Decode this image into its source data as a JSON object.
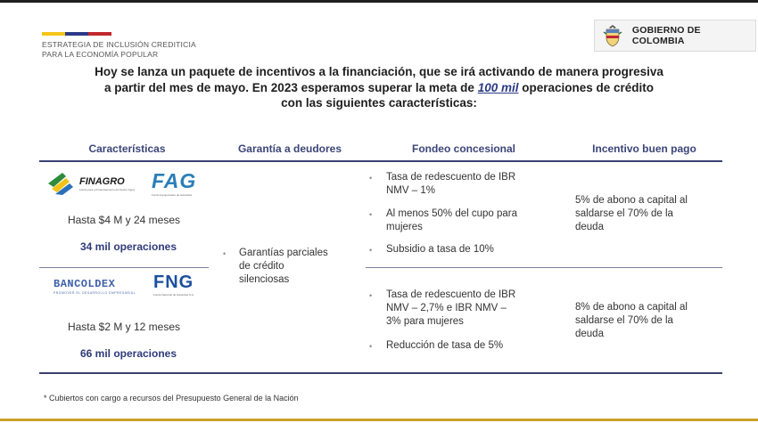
{
  "header": {
    "flag_colors": [
      "#f5c518",
      "#2b3a86",
      "#c0272d"
    ],
    "strategy_line1": "ESTRATEGIA DE INCLUSIÓN CREDITICIA",
    "strategy_line2": "PARA LA ECONOMÍA POPULAR",
    "gov_label": "GOBIERNO DE COLOMBIA"
  },
  "headline": {
    "line1": "Hoy se lanza un paquete de incentivos a la financiación, que se irá activando de manera progresiva",
    "line2_before": "a partir del mes de mayo. En 2023 esperamos superar la meta de ",
    "line2_highlight": "100 mil",
    "line2_after": " operaciones de crédito",
    "line3": "con las siguientes características:"
  },
  "table": {
    "columns": [
      "Características",
      "Garantía a deudores",
      "Fondeo concesional",
      "Incentivo buen pago"
    ],
    "row1": {
      "logo_left": "FINAGRO",
      "logo_left_tagline": "Fondo para el Financiamiento del Sector Agropecuario",
      "logo_right": "FAG",
      "logo_right_tagline": "Fondo Agropecuario de Garantías",
      "terms": "Hasta $4 M y 24 meses",
      "operations": "34 mil operaciones",
      "funding": [
        {
          "line1": "Tasa de redescuento de IBR",
          "line2": "NMV – 1%"
        },
        {
          "line1": "Al menos 50% del cupo para",
          "line2": "mujeres"
        },
        {
          "line1": "Subsidio a tasa de 10%",
          "line2": ""
        }
      ],
      "incentive": [
        "5% de abono a capital al",
        "saldarse el 70% de la",
        "deuda"
      ]
    },
    "guarantee": [
      "Garantías parciales",
      "de crédito",
      "silenciosas"
    ],
    "row2": {
      "logo_left": "BANCOLDEX",
      "logo_left_tagline": "PROMOVER EL DESARROLLO EMPRESARIAL",
      "logo_right": "FNG",
      "logo_right_tagline": "Fondo Nacional de Garantías S.A.",
      "terms": "Hasta $2 M y 12 meses",
      "operations": "66 mil operaciones",
      "funding": [
        {
          "line1": "Tasa de redescuento de IBR",
          "line2": "NMV – 2,7% e IBR NMV –",
          "line3": "3% para mujeres"
        },
        {
          "line1": "Reducción de tasa de 5%",
          "line2": "",
          "line3": ""
        }
      ],
      "incentive": [
        "8% de abono a capital al",
        "saldarse el 70% de la",
        "deuda"
      ]
    }
  },
  "footnote": "* Cubiertos con cargo a recursos del Presupuesto General de la Nación",
  "colors": {
    "accent_blue": "#2f3a7a",
    "finagro_green": "#2e8b3a",
    "fag_blue": "#2a7fb8",
    "fng_blue": "#1b4f9c",
    "bancoldex_blue": "#3e5fa8"
  }
}
